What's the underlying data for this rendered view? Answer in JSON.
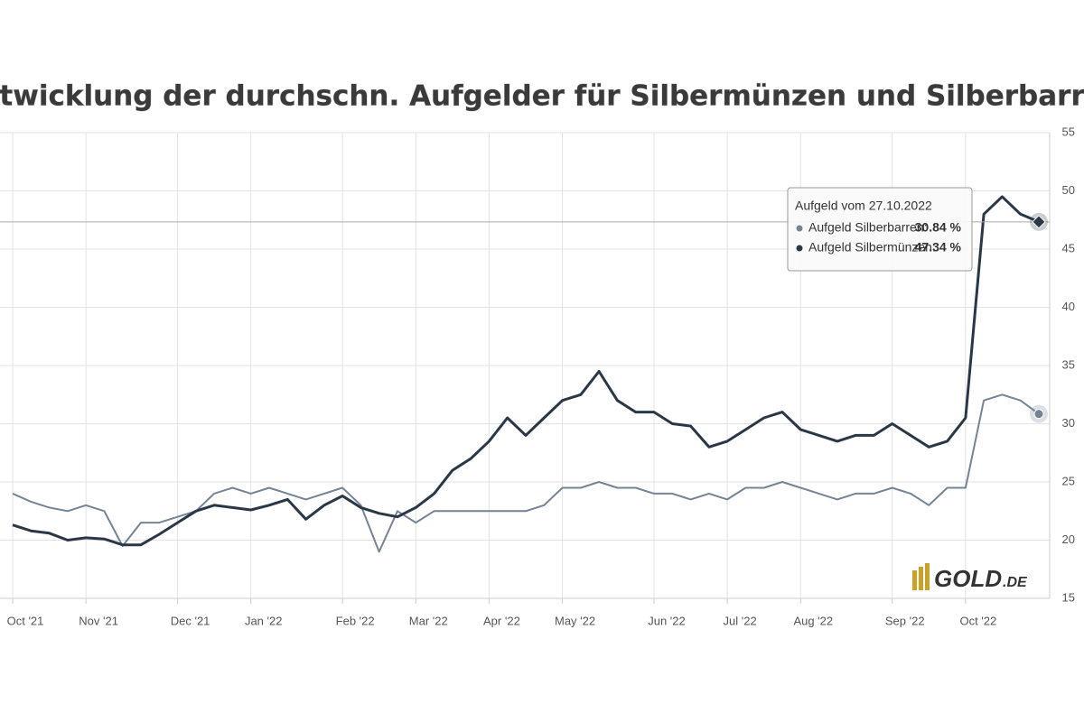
{
  "chart_data": {
    "type": "line",
    "title": "Entwicklung der durchschn. Aufgelder für Silbermünzen und Silberbarren",
    "categories": [
      "Oct '21",
      null,
      null,
      null,
      "Nov '21",
      null,
      null,
      null,
      null,
      "Dec '21",
      null,
      null,
      null,
      "Jan '22",
      null,
      null,
      null,
      null,
      "Feb '22",
      null,
      null,
      null,
      "Mar '22",
      null,
      null,
      null,
      "Apr '22",
      null,
      null,
      null,
      "May '22",
      null,
      null,
      null,
      null,
      "Jun '22",
      null,
      null,
      null,
      "Jul '22",
      null,
      null,
      null,
      "Aug '22",
      null,
      null,
      null,
      null,
      "Sep '22",
      null,
      null,
      null,
      "Oct '22",
      null,
      null,
      null,
      null
    ],
    "series": [
      {
        "name": "Aufgeld Silberbarren:",
        "color": "#748494",
        "values": [
          24.0,
          23.3,
          22.8,
          22.5,
          23.0,
          22.5,
          19.5,
          21.5,
          21.5,
          22.0,
          22.5,
          24.0,
          24.5,
          24.0,
          24.5,
          24.0,
          23.5,
          24.0,
          24.5,
          23.0,
          19.0,
          22.5,
          21.5,
          22.5,
          22.5,
          22.5,
          22.5,
          22.5,
          22.5,
          23.0,
          24.5,
          24.5,
          25.0,
          24.5,
          24.5,
          24.0,
          24.0,
          23.5,
          24.0,
          23.5,
          24.5,
          24.5,
          25.0,
          24.5,
          24.0,
          23.5,
          24.0,
          24.0,
          24.5,
          24.0,
          23.0,
          24.5,
          24.5,
          32.0,
          32.5,
          32.0,
          30.84
        ],
        "value_labels": [
          null,
          null,
          null,
          null,
          null,
          null,
          null,
          null,
          null,
          null,
          null,
          null,
          null,
          null,
          null,
          null,
          null,
          null,
          null,
          null,
          null,
          null,
          null,
          null,
          null,
          null,
          null,
          null,
          null,
          null,
          null,
          null,
          null,
          null,
          null,
          null,
          null,
          null,
          null,
          null,
          null,
          null,
          null,
          null,
          null,
          null,
          null,
          null,
          null,
          null,
          null,
          null,
          null,
          null,
          null,
          null,
          "30.84 %"
        ]
      },
      {
        "name": "Aufgeld Silbermünzen:",
        "color": "#2a3746",
        "values": [
          21.3,
          20.8,
          20.6,
          20.0,
          20.2,
          20.1,
          19.6,
          19.6,
          20.5,
          21.5,
          22.5,
          23.0,
          22.8,
          22.6,
          23.0,
          23.5,
          21.8,
          23.0,
          23.8,
          22.8,
          22.3,
          22.0,
          22.8,
          24.0,
          26.0,
          27.0,
          28.5,
          30.5,
          29.0,
          30.5,
          32.0,
          32.5,
          34.5,
          32.0,
          31.0,
          31.0,
          30.0,
          29.8,
          28.0,
          28.5,
          29.5,
          30.5,
          31.0,
          29.5,
          29.0,
          28.5,
          29.0,
          29.0,
          30.0,
          29.0,
          28.0,
          28.5,
          30.5,
          48.0,
          49.5,
          48.0,
          47.34
        ],
        "value_labels": [
          null,
          null,
          null,
          null,
          null,
          null,
          null,
          null,
          null,
          null,
          null,
          null,
          null,
          null,
          null,
          null,
          null,
          null,
          null,
          null,
          null,
          null,
          null,
          null,
          null,
          null,
          null,
          null,
          null,
          null,
          null,
          null,
          null,
          null,
          null,
          null,
          null,
          null,
          null,
          null,
          null,
          null,
          null,
          null,
          null,
          null,
          null,
          null,
          null,
          null,
          null,
          null,
          null,
          null,
          null,
          null,
          "47.34 %"
        ]
      }
    ],
    "ylim": [
      15,
      55
    ],
    "yticks": [
      15,
      20,
      25,
      30,
      35,
      40,
      45,
      50,
      55
    ],
    "grid": true,
    "tooltip_title": "Aufgeld vom 27.10.2022",
    "logo": {
      "text": "GOLD",
      "suffix": ".DE"
    }
  }
}
